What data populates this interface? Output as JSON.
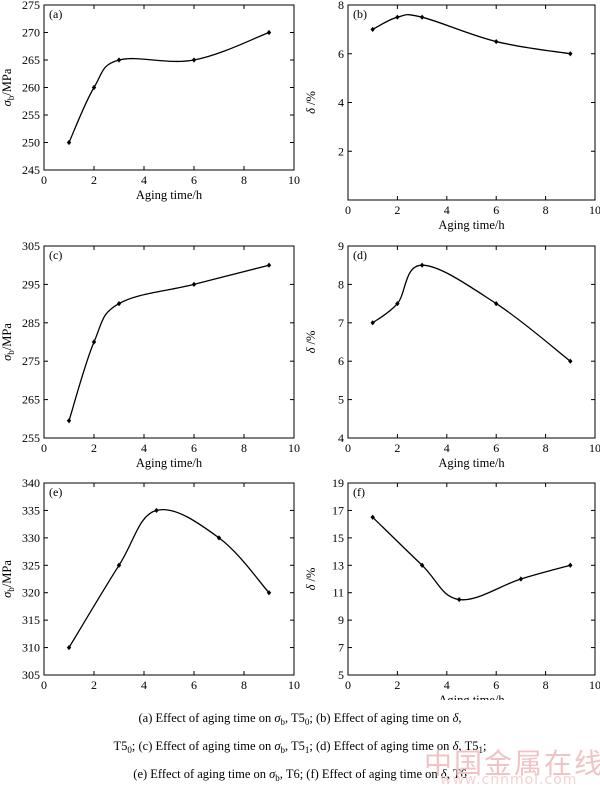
{
  "chart_data": [
    {
      "type": "line",
      "panel_label": "(a)",
      "xlabel": "Aging time/h",
      "ylabel_base": "σ",
      "ylabel_sub": "b",
      "ylabel_rest": "/MPa",
      "xlim": [
        0,
        10
      ],
      "ylim": [
        245,
        275
      ],
      "xticks": [
        0,
        2,
        4,
        6,
        8,
        10
      ],
      "yticks": [
        245,
        250,
        255,
        260,
        265,
        270,
        275
      ],
      "x": [
        1,
        2,
        3,
        6,
        9
      ],
      "y": [
        250,
        260,
        265,
        265,
        270
      ]
    },
    {
      "type": "line",
      "panel_label": "(b)",
      "xlabel": "Aging time/h",
      "ylabel_base": "δ",
      "ylabel_sub": "",
      "ylabel_rest": " /%",
      "xlim": [
        0,
        10
      ],
      "ylim": [
        0,
        8
      ],
      "xticks": [
        0,
        2,
        4,
        6,
        8,
        10
      ],
      "yticks": [
        2,
        4,
        6,
        8
      ],
      "x": [
        1,
        2,
        3,
        6,
        9
      ],
      "y": [
        7.0,
        7.5,
        7.5,
        6.5,
        6.0
      ]
    },
    {
      "type": "line",
      "panel_label": "(c)",
      "xlabel": "Aging time/h",
      "ylabel_base": "σ",
      "ylabel_sub": "b",
      "ylabel_rest": "/MPa",
      "xlim": [
        0,
        10
      ],
      "ylim": [
        255,
        305
      ],
      "xticks": [
        0,
        2,
        4,
        6,
        8,
        10
      ],
      "yticks": [
        255,
        265,
        275,
        285,
        295,
        305
      ],
      "x": [
        1,
        2,
        3,
        6,
        9
      ],
      "y": [
        259.5,
        280,
        290,
        295,
        300
      ]
    },
    {
      "type": "line",
      "panel_label": "(d)",
      "xlabel": "Aging time/h",
      "ylabel_base": "δ",
      "ylabel_sub": "",
      "ylabel_rest": " /%",
      "xlim": [
        0,
        10
      ],
      "ylim": [
        4,
        9
      ],
      "xticks": [
        0,
        2,
        4,
        6,
        8,
        10
      ],
      "yticks": [
        4,
        5,
        6,
        7,
        8,
        9
      ],
      "x": [
        1,
        2,
        3,
        6,
        9
      ],
      "y": [
        7.0,
        7.5,
        8.5,
        7.5,
        6.0
      ]
    },
    {
      "type": "line",
      "panel_label": "(e)",
      "xlabel": "",
      "ylabel_base": "σ",
      "ylabel_sub": "b",
      "ylabel_rest": "/MPa",
      "xlim": [
        0,
        10
      ],
      "ylim": [
        305,
        340
      ],
      "xticks": [
        0,
        2,
        4,
        6,
        8,
        10
      ],
      "yticks": [
        305,
        310,
        315,
        320,
        325,
        330,
        335,
        340
      ],
      "x": [
        1,
        3,
        4.5,
        7,
        9
      ],
      "y": [
        310,
        325,
        335,
        330,
        320
      ]
    },
    {
      "type": "line",
      "panel_label": "(f)",
      "xlabel": "Aging time/h",
      "ylabel_base": "δ",
      "ylabel_sub": "",
      "ylabel_rest": " /%",
      "xlim": [
        0,
        10
      ],
      "ylim": [
        5,
        19
      ],
      "xticks": [
        0,
        2,
        4,
        6,
        8,
        10
      ],
      "yticks": [
        5,
        7,
        9,
        11,
        13,
        15,
        17,
        19
      ],
      "x": [
        1,
        3,
        4.5,
        7,
        9
      ],
      "y": [
        16.5,
        13.0,
        10.5,
        12.0,
        13.0
      ]
    }
  ],
  "caption": {
    "line1_a": "(a) Effect of aging time on ",
    "line1_b": ", T5",
    "line1_c": "; (b) Effect of aging time on ",
    "line1_d": ",",
    "line2_a": "T5",
    "line2_b": "; (c) Effect of aging time on ",
    "line2_c": ", T5",
    "line2_d": "; (d) Effect of aging time on ",
    "line2_e": ", T5",
    "line2_f": ";",
    "line3_a": "(e) Effect of aging time on ",
    "line3_b": ", T6; (f) Effect of aging time on ",
    "line3_c": ", T6",
    "sigma": "σ",
    "sigma_sub": "b",
    "delta": "δ",
    "sub0": "0",
    "sub1": "1"
  },
  "watermark": {
    "cn": "中国金属在线",
    "url": "www.cnnmol.com"
  }
}
